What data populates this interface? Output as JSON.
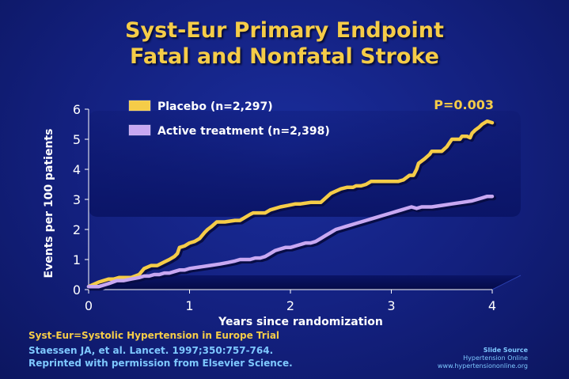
{
  "slide": {
    "title_line1": "Syst-Eur Primary Endpoint",
    "title_line2": "Fatal and Nonfatal Stroke",
    "footnote": "Syst-Eur=Systolic Hypertension in Europe Trial",
    "citation_line1": "Staessen JA, et al. Lancet. 1997;350:757-764.",
    "citation_line2": "Reprinted with permission from Elsevier Science.",
    "source_title": "Slide Source",
    "source_name": "Hypertension Online",
    "source_url": "www.hypertensiononline.org"
  },
  "colors": {
    "background": "#13207e",
    "title": "#f5cc48",
    "placebo": "#f5cc48",
    "active": "#c8a8f2",
    "axis_text": "#ffffff",
    "footnote": "#f5cc48",
    "citation": "#7ec8ff"
  },
  "chart_data": {
    "type": "line",
    "title": "",
    "xlabel": "Years since randomization",
    "ylabel": "Events per 100 patients",
    "xlim": [
      0,
      4
    ],
    "ylim": [
      0,
      6
    ],
    "x_ticks": [
      "0",
      "1",
      "2",
      "3",
      "4"
    ],
    "y_ticks": [
      "0",
      "1",
      "2",
      "3",
      "4",
      "5",
      "6"
    ],
    "annotation": "P=0.003",
    "legend_position": "top",
    "series": [
      {
        "name": "Placebo (n=2,297)",
        "color": "#f5cc48",
        "x": [
          0,
          0.1,
          0.2,
          0.25,
          0.3,
          0.42,
          0.5,
          0.55,
          0.62,
          0.68,
          0.74,
          0.8,
          0.85,
          0.88,
          0.9,
          0.95,
          1.0,
          1.05,
          1.1,
          1.15,
          1.18,
          1.22,
          1.27,
          1.35,
          1.45,
          1.5,
          1.6,
          1.63,
          1.75,
          1.8,
          1.9,
          1.98,
          2.05,
          2.1,
          2.2,
          2.26,
          2.3,
          2.4,
          2.5,
          2.56,
          2.62,
          2.65,
          2.7,
          2.75,
          2.8,
          2.9,
          2.95,
          3.07,
          3.12,
          3.18,
          3.22,
          3.25,
          3.27,
          3.33,
          3.38,
          3.4,
          3.43,
          3.5,
          3.55,
          3.6,
          3.68,
          3.7,
          3.75,
          3.78,
          3.8,
          3.83,
          3.87,
          3.9,
          3.95,
          4.0
        ],
        "y": [
          0.1,
          0.25,
          0.35,
          0.35,
          0.4,
          0.4,
          0.5,
          0.7,
          0.8,
          0.8,
          0.9,
          1.0,
          1.1,
          1.2,
          1.4,
          1.45,
          1.55,
          1.6,
          1.7,
          1.9,
          2.0,
          2.1,
          2.25,
          2.25,
          2.3,
          2.3,
          2.5,
          2.55,
          2.55,
          2.65,
          2.75,
          2.8,
          2.85,
          2.85,
          2.9,
          2.9,
          2.9,
          3.2,
          3.35,
          3.4,
          3.4,
          3.45,
          3.45,
          3.5,
          3.6,
          3.6,
          3.6,
          3.6,
          3.65,
          3.8,
          3.8,
          4.0,
          4.2,
          4.35,
          4.5,
          4.6,
          4.6,
          4.6,
          4.75,
          5.0,
          5.0,
          5.1,
          5.1,
          5.05,
          5.2,
          5.3,
          5.4,
          5.5,
          5.6,
          5.55
        ]
      },
      {
        "name": "Active treatment (n=2,398)",
        "color": "#c8a8f2",
        "x": [
          0,
          0.1,
          0.2,
          0.28,
          0.35,
          0.42,
          0.5,
          0.55,
          0.6,
          0.65,
          0.7,
          0.75,
          0.8,
          0.85,
          0.9,
          0.95,
          1.0,
          1.1,
          1.2,
          1.3,
          1.38,
          1.45,
          1.5,
          1.55,
          1.6,
          1.65,
          1.7,
          1.75,
          1.8,
          1.85,
          1.9,
          1.95,
          2.0,
          2.05,
          2.1,
          2.15,
          2.2,
          2.25,
          2.3,
          2.35,
          2.4,
          2.45,
          2.5,
          2.55,
          2.6,
          2.65,
          2.7,
          2.75,
          2.8,
          2.85,
          2.9,
          2.95,
          3.0,
          3.05,
          3.1,
          3.15,
          3.2,
          3.25,
          3.3,
          3.4,
          3.5,
          3.6,
          3.7,
          3.8,
          3.85,
          3.9,
          3.95,
          4.0
        ],
        "y": [
          0.1,
          0.1,
          0.2,
          0.3,
          0.3,
          0.35,
          0.4,
          0.45,
          0.45,
          0.5,
          0.5,
          0.55,
          0.55,
          0.6,
          0.65,
          0.65,
          0.7,
          0.75,
          0.8,
          0.85,
          0.9,
          0.95,
          1.0,
          1.0,
          1.0,
          1.05,
          1.05,
          1.1,
          1.2,
          1.3,
          1.35,
          1.4,
          1.4,
          1.45,
          1.5,
          1.55,
          1.55,
          1.6,
          1.7,
          1.8,
          1.9,
          2.0,
          2.05,
          2.1,
          2.15,
          2.2,
          2.25,
          2.3,
          2.35,
          2.4,
          2.45,
          2.5,
          2.55,
          2.6,
          2.65,
          2.7,
          2.75,
          2.7,
          2.75,
          2.75,
          2.8,
          2.85,
          2.9,
          2.95,
          3.0,
          3.05,
          3.1,
          3.1
        ]
      }
    ]
  }
}
